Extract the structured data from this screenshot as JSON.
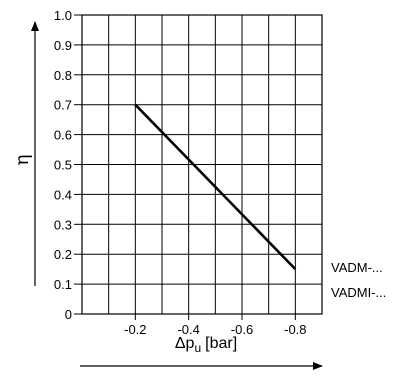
{
  "chart_data": {
    "type": "line",
    "ylabel": "η",
    "xlabel": "Δp",
    "xlabel_sub": "u",
    "xlabel_unit": "[bar]",
    "x_ticks": [
      -0.2,
      -0.4,
      -0.6,
      -0.8
    ],
    "x_tick_labels": [
      "-0.2",
      "-0.4",
      "-0.6",
      "-0.8"
    ],
    "y_ticks": [
      0,
      0.1,
      0.2,
      0.3,
      0.4,
      0.5,
      0.6,
      0.7,
      0.8,
      0.9,
      1.0
    ],
    "y_tick_labels": [
      "0",
      "0.1",
      "0.2",
      "0.3",
      "0.4",
      "0.5",
      "0.6",
      "0.7",
      "0.8",
      "0.9",
      "1.0"
    ],
    "xlim": [
      0,
      -0.9
    ],
    "ylim": [
      0,
      1.0
    ],
    "grid": true,
    "series": [
      {
        "x": [
          -0.2,
          -0.8
        ],
        "y": [
          0.7,
          0.15
        ]
      }
    ],
    "labels": [
      "VADM-...",
      "VADMI-..."
    ]
  }
}
